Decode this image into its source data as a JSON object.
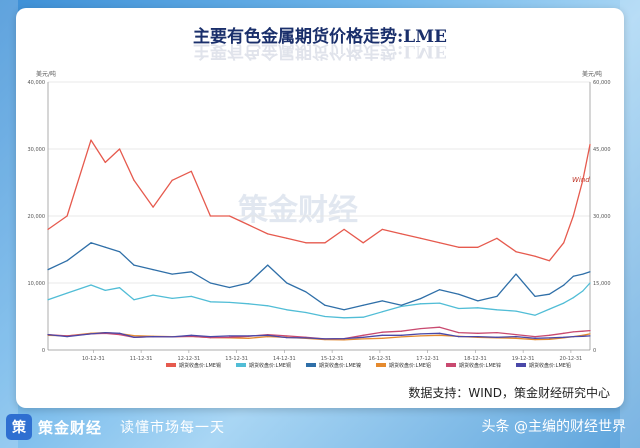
{
  "chart_data": {
    "type": "line",
    "title": "主要有色金属期货价格走势:LME",
    "left_axis_unit": "美元/吨",
    "right_axis_unit": "美元/吨",
    "left_ticks": [
      "0",
      "10,000",
      "20,000",
      "30,000",
      "40,000"
    ],
    "right_ticks": [
      "0",
      "15,000",
      "30,000",
      "45,000",
      "60,000"
    ],
    "x_ticks": [
      "10-12-31",
      "11-12-31",
      "12-12-31",
      "13-12-31",
      "14-12-31",
      "15-12-31",
      "16-12-31",
      "17-12-31",
      "18-12-31",
      "19-12-31",
      "20-12-31"
    ],
    "watermark": "策金财经",
    "small_mark": "Wind",
    "series": [
      {
        "name": "期货收盘价:LME锡",
        "axis": "right",
        "color": "#e65a4e",
        "x": [
          2010.0,
          2010.4,
          2010.9,
          2011.2,
          2011.5,
          2011.8,
          2012.2,
          2012.6,
          2013.0,
          2013.4,
          2013.8,
          2014.2,
          2014.6,
          2015.0,
          2015.4,
          2015.8,
          2016.2,
          2016.6,
          2017.0,
          2017.4,
          2017.8,
          2018.2,
          2018.6,
          2019.0,
          2019.4,
          2019.8,
          2020.2,
          2020.5,
          2020.8,
          2021.0,
          2021.2,
          2021.35
        ],
        "y": [
          27000,
          30000,
          47000,
          42000,
          45000,
          38000,
          32000,
          38000,
          40000,
          30000,
          30000,
          28000,
          26000,
          25000,
          24000,
          24000,
          27000,
          24000,
          27000,
          26000,
          25000,
          24000,
          23000,
          23000,
          25000,
          22000,
          21000,
          20000,
          24000,
          30000,
          38000,
          46000
        ]
      },
      {
        "name": "期货收盘价:LME铜",
        "axis": "left",
        "color": "#51bdd6",
        "x": [
          2010.0,
          2010.4,
          2010.9,
          2011.2,
          2011.5,
          2011.8,
          2012.2,
          2012.6,
          2013.0,
          2013.4,
          2013.8,
          2014.2,
          2014.6,
          2015.0,
          2015.4,
          2015.8,
          2016.2,
          2016.6,
          2017.0,
          2017.4,
          2017.8,
          2018.2,
          2018.6,
          2019.0,
          2019.4,
          2019.8,
          2020.2,
          2020.5,
          2020.8,
          2021.0,
          2021.2,
          2021.35
        ],
        "y": [
          7500,
          8500,
          9700,
          8900,
          9300,
          7500,
          8200,
          7700,
          8000,
          7200,
          7100,
          6900,
          6600,
          6000,
          5600,
          5000,
          4800,
          4900,
          5700,
          6500,
          6900,
          7000,
          6200,
          6300,
          6000,
          5800,
          5200,
          6100,
          7000,
          7800,
          8800,
          10000
        ]
      },
      {
        "name": "期货收盘价:LME镍",
        "axis": "right",
        "color": "#2f6fa8",
        "x": [
          2010.0,
          2010.4,
          2010.9,
          2011.2,
          2011.5,
          2011.8,
          2012.2,
          2012.6,
          2013.0,
          2013.4,
          2013.8,
          2014.2,
          2014.6,
          2015.0,
          2015.4,
          2015.8,
          2016.2,
          2016.6,
          2017.0,
          2017.4,
          2017.8,
          2018.2,
          2018.6,
          2019.0,
          2019.4,
          2019.8,
          2020.2,
          2020.5,
          2020.8,
          2021.0,
          2021.2,
          2021.35
        ],
        "y": [
          18000,
          20000,
          24000,
          23000,
          22000,
          19000,
          18000,
          17000,
          17500,
          15000,
          14000,
          15000,
          19000,
          15000,
          13000,
          10000,
          9000,
          10000,
          11000,
          10000,
          11500,
          13500,
          12500,
          11000,
          12000,
          17000,
          12000,
          12500,
          14500,
          16500,
          17000,
          17500
        ]
      },
      {
        "name": "期货收盘价:LME铝",
        "axis": "left",
        "color": "#e58a2e",
        "x": [
          2010.0,
          2010.4,
          2010.9,
          2011.2,
          2011.5,
          2011.8,
          2012.2,
          2012.6,
          2013.0,
          2013.4,
          2013.8,
          2014.2,
          2014.6,
          2015.0,
          2015.4,
          2015.8,
          2016.2,
          2016.6,
          2017.0,
          2017.4,
          2017.8,
          2018.2,
          2018.6,
          2019.0,
          2019.4,
          2019.8,
          2020.2,
          2020.5,
          2020.8,
          2021.0,
          2021.2,
          2021.35
        ],
        "y": [
          2200,
          2100,
          2500,
          2600,
          2450,
          2150,
          2050,
          2000,
          2050,
          1850,
          1800,
          1750,
          2000,
          1900,
          1750,
          1550,
          1500,
          1650,
          1750,
          1950,
          2100,
          2200,
          2050,
          1900,
          1800,
          1750,
          1550,
          1600,
          1800,
          2000,
          2200,
          2400
        ]
      },
      {
        "name": "期货收盘价:LME锌",
        "axis": "left",
        "color": "#c94a70",
        "x": [
          2010.0,
          2010.4,
          2010.9,
          2011.2,
          2011.5,
          2011.8,
          2012.2,
          2012.6,
          2013.0,
          2013.4,
          2013.8,
          2014.2,
          2014.6,
          2015.0,
          2015.4,
          2015.8,
          2016.2,
          2016.6,
          2017.0,
          2017.4,
          2017.8,
          2018.2,
          2018.6,
          2019.0,
          2019.4,
          2019.8,
          2020.2,
          2020.5,
          2020.8,
          2021.0,
          2021.2,
          2021.35
        ],
        "y": [
          2300,
          2100,
          2400,
          2500,
          2300,
          1900,
          2000,
          1950,
          2050,
          1850,
          1900,
          2050,
          2300,
          2100,
          1900,
          1650,
          1700,
          2200,
          2650,
          2800,
          3200,
          3400,
          2600,
          2500,
          2600,
          2300,
          2000,
          2200,
          2500,
          2700,
          2800,
          2900
        ]
      },
      {
        "name": "期货收盘价:LME铅",
        "axis": "left",
        "color": "#4a48a8",
        "x": [
          2010.0,
          2010.4,
          2010.9,
          2011.2,
          2011.5,
          2011.8,
          2012.2,
          2012.6,
          2013.0,
          2013.4,
          2013.8,
          2014.2,
          2014.6,
          2015.0,
          2015.4,
          2015.8,
          2016.2,
          2016.6,
          2017.0,
          2017.4,
          2017.8,
          2018.2,
          2018.6,
          2019.0,
          2019.4,
          2019.8,
          2020.2,
          2020.5,
          2020.8,
          2021.0,
          2021.2,
          2021.35
        ],
        "y": [
          2300,
          2000,
          2400,
          2600,
          2500,
          1900,
          2000,
          1950,
          2200,
          2000,
          2100,
          2100,
          2200,
          1850,
          1800,
          1650,
          1700,
          1900,
          2200,
          2200,
          2400,
          2500,
          2000,
          2000,
          1900,
          2000,
          1750,
          1800,
          1900,
          2000,
          2050,
          2100
        ]
      }
    ],
    "left_ylim": [
      0,
      40000
    ],
    "right_ylim": [
      0,
      60000
    ],
    "xlim": [
      2010.0,
      2021.35
    ]
  },
  "source_text": "数据支持：WIND，策金财经研究中心",
  "footer": {
    "logo_glyph": "策",
    "brand": "策金财经",
    "slogan": "读懂市场每一天",
    "right_text": "头条 @主编的财经世界"
  },
  "colors": {
    "title": "#1a2f6b",
    "accent": "#2f6fd1"
  }
}
